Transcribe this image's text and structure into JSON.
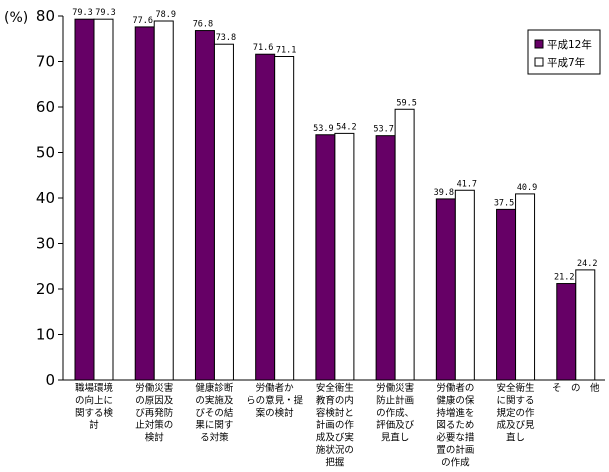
{
  "chart_data": {
    "type": "bar",
    "ylabel": "(%)",
    "ylim": [
      0,
      80
    ],
    "yticks": [
      "0",
      "10",
      "20",
      "30",
      "40",
      "50",
      "60",
      "70",
      "80"
    ],
    "categories": [
      [
        "職場環境",
        "の向上に",
        "関する検",
        "討"
      ],
      [
        "労働災害",
        "の原因及",
        "び再発防",
        "止対策の",
        "検討"
      ],
      [
        "健康診断",
        "の実施及",
        "びその結",
        "果に関す",
        "る対策"
      ],
      [
        "労働者か",
        "らの意見・提",
        "案の検討"
      ],
      [
        "安全衛生",
        "教育の内",
        "容検討と",
        "計画の作",
        "成及び実",
        "施状況の",
        "把握"
      ],
      [
        "労働災害",
        "防止計画",
        "の作成、",
        "評価及び",
        "見直し"
      ],
      [
        "労働者の",
        "健康の保",
        "持増進を",
        "図るため",
        "必要な措",
        "置の計画",
        "の作成"
      ],
      [
        "安全衛生",
        "に関する",
        "規定の作",
        "成及び見",
        "直し"
      ],
      [
        "そ　の　他"
      ]
    ],
    "series": [
      {
        "name": "平成12年",
        "color": "#660066",
        "values": [
          79.3,
          77.6,
          76.8,
          71.6,
          53.9,
          53.7,
          39.8,
          37.5,
          21.2
        ],
        "labels": [
          "79.3",
          "77.6",
          "76.8",
          "71.6",
          "53.9",
          "53.7",
          "39.8",
          "37.5",
          "21.2"
        ]
      },
      {
        "name": "平成7年",
        "color": "#ffffff",
        "values": [
          79.3,
          78.9,
          73.8,
          71.1,
          54.2,
          59.5,
          41.7,
          40.9,
          24.2
        ],
        "labels": [
          "79.3",
          "78.9",
          "73.8",
          "71.1",
          "54.2",
          "59.5",
          "41.7",
          "40.9",
          "24.2"
        ]
      }
    ],
    "grid": false,
    "legend_position": "top-right"
  }
}
